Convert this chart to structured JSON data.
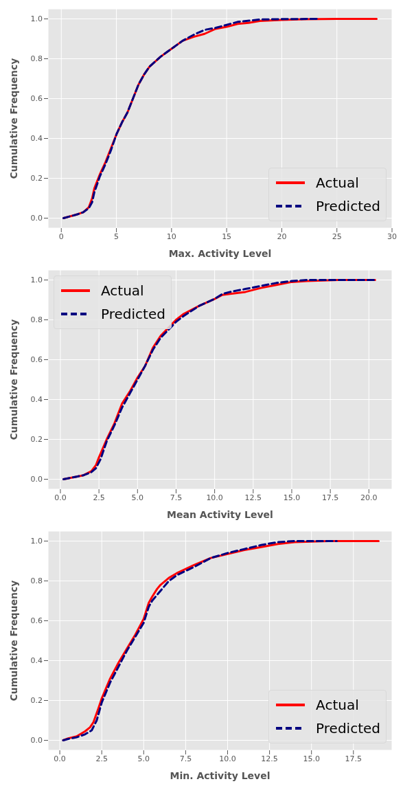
{
  "chart_data": [
    {
      "type": "line",
      "xlabel": "Max. Activity Level",
      "ylabel": "Cumulative Frequency",
      "xlim": [
        -1.2,
        30
      ],
      "ylim": [
        -0.05,
        1.05
      ],
      "xticks": [
        0,
        5,
        10,
        15,
        20,
        25,
        30
      ],
      "yticks": [
        {
          "value": 0,
          "label": "0.0"
        },
        {
          "value": 0.2,
          "label": "0.2"
        },
        {
          "value": 0.4,
          "label": "0.4"
        },
        {
          "value": 0.6,
          "label": "0.6"
        },
        {
          "value": 0.8,
          "label": "0.8"
        },
        {
          "value": 1,
          "label": "1.0"
        }
      ],
      "grid": true,
      "legend": "bottom right",
      "series": [
        {
          "name": "Actual",
          "color": "#ff0000",
          "line_style": "solid",
          "x": [
            0.2,
            1,
            1.5,
            2,
            2.5,
            2.8,
            3,
            3.5,
            4,
            4.5,
            5,
            5.5,
            6,
            6.5,
            7,
            7.5,
            8,
            9,
            10,
            11,
            12,
            13,
            14,
            15,
            16,
            17,
            18,
            20,
            22,
            25,
            28.6
          ],
          "values": [
            0,
            0.012,
            0.02,
            0.03,
            0.055,
            0.1,
            0.15,
            0.22,
            0.28,
            0.35,
            0.42,
            0.48,
            0.53,
            0.6,
            0.67,
            0.72,
            0.76,
            0.81,
            0.85,
            0.89,
            0.91,
            0.925,
            0.95,
            0.96,
            0.975,
            0.98,
            0.99,
            0.995,
            0.998,
            1,
            1
          ]
        },
        {
          "name": "Predicted",
          "color": "#000080",
          "line_style": "dashed",
          "x": [
            0.2,
            1,
            1.5,
            2,
            2.5,
            2.8,
            3,
            3.5,
            4,
            4.5,
            5,
            5.5,
            6,
            6.5,
            7,
            7.5,
            8,
            9,
            10,
            11,
            12,
            13,
            14,
            15,
            16,
            18,
            20,
            23.3
          ],
          "values": [
            0,
            0.012,
            0.02,
            0.03,
            0.05,
            0.08,
            0.13,
            0.21,
            0.27,
            0.34,
            0.42,
            0.48,
            0.53,
            0.6,
            0.67,
            0.72,
            0.76,
            0.81,
            0.85,
            0.89,
            0.92,
            0.945,
            0.955,
            0.97,
            0.985,
            0.997,
            0.999,
            1
          ]
        }
      ]
    },
    {
      "type": "line",
      "xlabel": "Mean Activity Level",
      "ylabel": "Cumulative Frequency",
      "xlim": [
        -0.8,
        21.5
      ],
      "ylim": [
        -0.05,
        1.05
      ],
      "xticks": [
        {
          "value": 0,
          "label": "0.0"
        },
        2.5,
        {
          "value": 5,
          "label": "5.0"
        },
        7.5,
        {
          "value": 10,
          "label": "10.0"
        },
        12.5,
        {
          "value": 15,
          "label": "15.0"
        },
        17.5,
        {
          "value": 20,
          "label": "20.0"
        }
      ],
      "yticks": [
        {
          "value": 0,
          "label": "0.0"
        },
        {
          "value": 0.2,
          "label": "0.2"
        },
        {
          "value": 0.4,
          "label": "0.4"
        },
        {
          "value": 0.6,
          "label": "0.6"
        },
        {
          "value": 0.8,
          "label": "0.8"
        },
        {
          "value": 1,
          "label": "1.0"
        }
      ],
      "grid": true,
      "legend": "top left",
      "series": [
        {
          "name": "Actual",
          "color": "#ff0000",
          "line_style": "solid",
          "x": [
            0.2,
            1,
            1.5,
            2,
            2.3,
            2.5,
            3,
            3.5,
            4,
            4.5,
            5,
            5.5,
            6,
            6.5,
            7,
            7.5,
            8,
            9,
            10,
            10.5,
            11,
            12,
            13,
            14,
            15,
            16,
            18,
            20.4
          ],
          "values": [
            0,
            0.012,
            0.02,
            0.04,
            0.07,
            0.11,
            0.2,
            0.28,
            0.38,
            0.44,
            0.51,
            0.57,
            0.66,
            0.72,
            0.76,
            0.8,
            0.83,
            0.87,
            0.905,
            0.925,
            0.93,
            0.94,
            0.96,
            0.975,
            0.99,
            0.995,
            1,
            1
          ]
        },
        {
          "name": "Predicted",
          "color": "#000080",
          "line_style": "dashed",
          "x": [
            0.2,
            1,
            1.5,
            2,
            2.3,
            2.6,
            3,
            3.5,
            4,
            4.5,
            5,
            5.5,
            6,
            6.5,
            7,
            7.5,
            8,
            9,
            10,
            10.5,
            11,
            12,
            13,
            14,
            15,
            16,
            20.4
          ],
          "values": [
            0,
            0.012,
            0.02,
            0.035,
            0.055,
            0.1,
            0.19,
            0.27,
            0.36,
            0.43,
            0.5,
            0.57,
            0.65,
            0.71,
            0.75,
            0.79,
            0.82,
            0.87,
            0.905,
            0.93,
            0.94,
            0.955,
            0.97,
            0.985,
            0.995,
            1,
            1
          ]
        }
      ]
    },
    {
      "type": "line",
      "xlabel": "Min. Activity Level",
      "ylabel": "Cumulative Frequency",
      "xlim": [
        -0.7,
        19.8
      ],
      "ylim": [
        -0.05,
        1.05
      ],
      "xticks": [
        {
          "value": 0,
          "label": "0.0"
        },
        2.5,
        {
          "value": 5,
          "label": "5.0"
        },
        7.5,
        {
          "value": 10,
          "label": "10.0"
        },
        12.5,
        {
          "value": 15,
          "label": "15.0"
        },
        17.5
      ],
      "yticks": [
        {
          "value": 0,
          "label": "0.0"
        },
        {
          "value": 0.2,
          "label": "0.2"
        },
        {
          "value": 0.4,
          "label": "0.4"
        },
        {
          "value": 0.6,
          "label": "0.6"
        },
        {
          "value": 0.8,
          "label": "0.8"
        },
        {
          "value": 1,
          "label": "1.0"
        }
      ],
      "grid": true,
      "legend": "bottom right",
      "series": [
        {
          "name": "Actual",
          "color": "#ff0000",
          "line_style": "solid",
          "x": [
            0.2,
            0.5,
            1,
            1.5,
            1.8,
            2,
            2.3,
            2.5,
            2.8,
            3,
            3.5,
            4,
            4.5,
            5,
            5.3,
            5.5,
            5.8,
            6,
            6.5,
            7,
            7.5,
            8,
            9,
            10,
            11,
            12,
            13,
            14,
            16,
            19
          ],
          "values": [
            0,
            0.01,
            0.02,
            0.045,
            0.065,
            0.09,
            0.16,
            0.21,
            0.27,
            0.31,
            0.39,
            0.46,
            0.53,
            0.61,
            0.69,
            0.72,
            0.76,
            0.78,
            0.815,
            0.84,
            0.86,
            0.88,
            0.915,
            0.935,
            0.955,
            0.97,
            0.985,
            0.995,
            1,
            1
          ]
        },
        {
          "name": "Predicted",
          "color": "#000080",
          "line_style": "dashed",
          "x": [
            0.2,
            0.5,
            1,
            1.5,
            1.9,
            2.2,
            2.5,
            2.8,
            3,
            3.5,
            4,
            4.5,
            5,
            5.3,
            5.5,
            6,
            6.5,
            7,
            8,
            9,
            10,
            11,
            12,
            13,
            14,
            16.5
          ],
          "values": [
            0,
            0.007,
            0.015,
            0.03,
            0.05,
            0.1,
            0.19,
            0.25,
            0.29,
            0.37,
            0.45,
            0.52,
            0.59,
            0.67,
            0.7,
            0.75,
            0.8,
            0.83,
            0.87,
            0.915,
            0.94,
            0.96,
            0.98,
            0.995,
            1,
            1
          ]
        }
      ]
    }
  ]
}
